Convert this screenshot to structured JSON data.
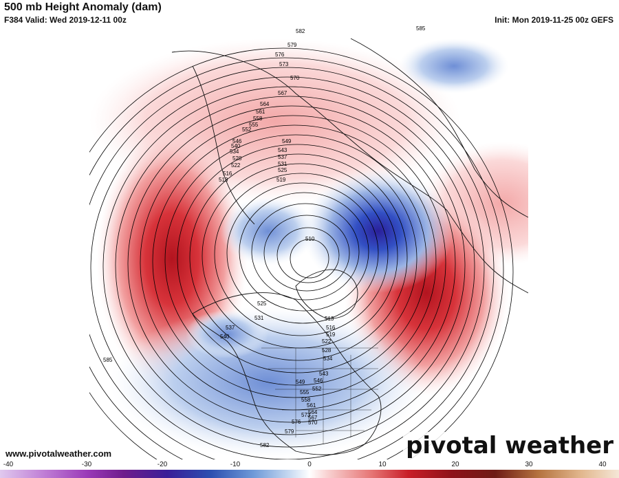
{
  "header": {
    "title": "500 mb Height Anomaly (dam)",
    "valid": "F384 Valid: Wed 2019-12-11 00z",
    "init": "Init: Mon 2019-11-25 00z GEFS"
  },
  "footer": {
    "website": "www.pivotalweather.com",
    "brand": "pivotal weather"
  },
  "colorbar": {
    "ticks": [
      "-40",
      "-30",
      "-20",
      "-10",
      "0",
      "10",
      "20",
      "30",
      "40"
    ],
    "min": -40,
    "max": 40
  },
  "contour_labels": {
    "top": [
      "582",
      "585",
      "579",
      "576",
      "573",
      "570",
      "567",
      "564",
      "561",
      "558",
      "555",
      "552",
      "549",
      "546",
      "543",
      "540",
      "537",
      "534",
      "531",
      "528",
      "525",
      "522",
      "519",
      "516",
      "513"
    ],
    "center": [
      "510",
      "513",
      "516",
      "519",
      "522",
      "525",
      "528",
      "531",
      "534",
      "537",
      "540",
      "543",
      "546",
      "549",
      "552",
      "555",
      "558",
      "561",
      "564",
      "567",
      "570",
      "573",
      "576",
      "579",
      "582",
      "585"
    ]
  },
  "colors": {
    "positive": "#d4202a",
    "negative": "#2b4fb0",
    "contour": "#000000"
  }
}
